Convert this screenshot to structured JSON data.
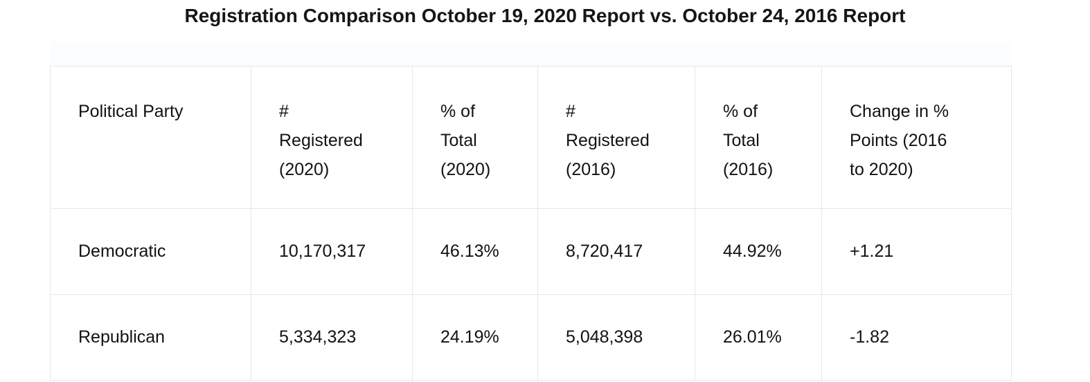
{
  "page": {
    "title": "Registration Comparison October 19, 2020 Report vs. October 24, 2016 Report"
  },
  "chart_data": {
    "type": "table",
    "title": "Registration Comparison October 19, 2020 Report vs. October 24, 2016 Report",
    "columns": [
      "Political Party",
      "#\nRegistered\n(2020)",
      "% of\nTotal\n(2020)",
      "#\nRegistered\n(2016)",
      "% of\nTotal\n(2016)",
      "Change in %\nPoints (2016\nto 2020)"
    ],
    "rows": [
      [
        "Democratic",
        "10,170,317",
        "46.13%",
        "8,720,417",
        "44.92%",
        "+1.21"
      ],
      [
        "Republican",
        "5,334,323",
        "24.19%",
        "5,048,398",
        "26.01%",
        "-1.82"
      ]
    ],
    "layout": {
      "border_color": "#dfe9f0",
      "background_color": "#fbfdfe"
    }
  }
}
